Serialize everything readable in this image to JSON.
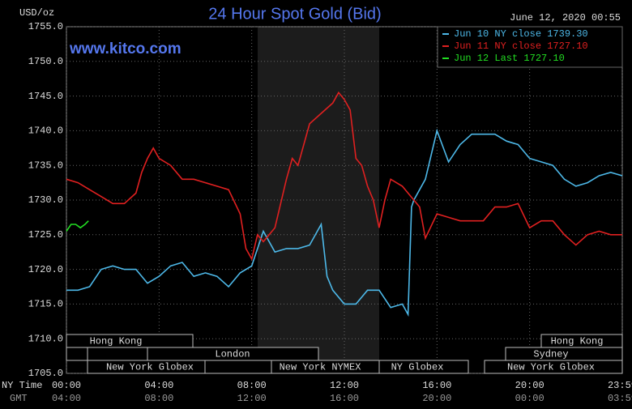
{
  "chart_data": {
    "type": "line",
    "title": "24 Hour Spot Gold (Bid)",
    "y_label": "USD/oz",
    "timestamp": "June 12, 2020 00:55",
    "watermark": "www.kitco.com",
    "x_label": "NY Time",
    "x2_label": "GMT",
    "xlim": [
      0,
      24
    ],
    "xticks": [
      {
        "value": 0,
        "label": "00:00"
      },
      {
        "value": 4,
        "label": "04:00"
      },
      {
        "value": 8,
        "label": "08:00"
      },
      {
        "value": 12,
        "label": "12:00"
      },
      {
        "value": 16,
        "label": "16:00"
      },
      {
        "value": 20,
        "label": "20:00"
      },
      {
        "value": 24,
        "label": "23:59"
      }
    ],
    "x2ticks": [
      "04:00",
      "08:00",
      "12:00",
      "16:00",
      "20:00",
      "00:00",
      "03:59"
    ],
    "ylim": [
      1705,
      1755
    ],
    "yticks": [
      {
        "value": 1705,
        "label": "1705.0"
      },
      {
        "value": 1710,
        "label": "1710.0"
      },
      {
        "value": 1715,
        "label": "1715.0"
      },
      {
        "value": 1720,
        "label": "1720.0"
      },
      {
        "value": 1725,
        "label": "1725.0"
      },
      {
        "value": 1730,
        "label": "1730.0"
      },
      {
        "value": 1735,
        "label": "1735.0"
      },
      {
        "value": 1740,
        "label": "1740.0"
      },
      {
        "value": 1745,
        "label": "1745.0"
      },
      {
        "value": 1750,
        "label": "1750.0"
      },
      {
        "value": 1755,
        "label": "1755.0"
      }
    ],
    "grid": true,
    "legend": "top-right",
    "sessions": [
      "Hong Kong",
      "Hong Kong",
      "London",
      "Sydney",
      "New York Globex",
      "New York NYMEX",
      "NY Globex",
      "New York Globex"
    ],
    "series": [
      {
        "name": "Jun 10 NY close 1739.30",
        "color": "#4db8e8",
        "x": [
          0,
          0.5,
          1,
          1.5,
          2,
          2.5,
          3,
          3.5,
          4,
          4.5,
          5,
          5.5,
          6,
          6.5,
          7,
          7.5,
          8,
          8.5,
          9,
          9.5,
          10,
          10.5,
          11,
          11.25,
          11.5,
          12,
          12.5,
          13,
          13.5,
          14,
          14.5,
          14.75,
          14.9,
          15,
          15.5,
          16,
          16.5,
          17,
          17.5,
          18,
          18.5,
          19,
          19.5,
          20,
          20.5,
          21,
          21.5,
          22,
          22.5,
          23,
          23.5,
          24
        ],
        "values": [
          1717,
          1717,
          1717.5,
          1720,
          1720.5,
          1720,
          1720,
          1718,
          1719,
          1720.5,
          1721,
          1719,
          1719.5,
          1719,
          1717.5,
          1719.5,
          1720.5,
          1725.5,
          1722.5,
          1723,
          1723,
          1723.5,
          1726.5,
          1719,
          1717,
          1715,
          1715,
          1717,
          1717,
          1714.5,
          1715,
          1713.5,
          1729,
          1730,
          1733,
          1740,
          1735.5,
          1738,
          1739.5,
          1739.5,
          1739.5,
          1738.5,
          1738,
          1736,
          1735.5,
          1735,
          1733,
          1732,
          1732.5,
          1733.5,
          1734,
          1733.5
        ]
      },
      {
        "name": "Jun 11 NY close 1727.10",
        "color": "#e02020",
        "x": [
          0,
          0.5,
          1,
          1.5,
          2,
          2.5,
          3,
          3.25,
          3.5,
          3.75,
          4,
          4.5,
          5,
          5.5,
          6,
          6.5,
          7,
          7.5,
          7.75,
          8,
          8.25,
          8.5,
          9,
          9.5,
          9.75,
          10,
          10.5,
          11,
          11.5,
          11.75,
          12,
          12.25,
          12.5,
          12.75,
          13,
          13.25,
          13.5,
          13.75,
          14,
          14.5,
          15,
          15.25,
          15.5,
          16,
          16.5,
          17,
          18,
          18.5,
          19,
          19.5,
          20,
          20.5,
          21,
          21.5,
          22,
          22.5,
          23,
          23.5,
          24
        ],
        "values": [
          1733,
          1732.5,
          1731.5,
          1730.5,
          1729.5,
          1729.5,
          1731,
          1734,
          1736,
          1737.5,
          1736,
          1735,
          1733,
          1733,
          1732.5,
          1732,
          1731.5,
          1728,
          1723,
          1721.5,
          1725,
          1724,
          1726,
          1733,
          1736,
          1735,
          1741,
          1742.5,
          1744,
          1745.5,
          1744.5,
          1743,
          1736,
          1735,
          1732,
          1730,
          1726,
          1730,
          1733,
          1732,
          1730,
          1729,
          1724.5,
          1728,
          1727.5,
          1727,
          1727,
          1729,
          1729,
          1729.5,
          1726,
          1727,
          1727,
          1725,
          1723.5,
          1725,
          1725.5,
          1725,
          1725
        ]
      },
      {
        "name": "Jun 12 Last 1727.10",
        "color": "#22dd22",
        "x": [
          0,
          0.2,
          0.4,
          0.6,
          0.8,
          0.95
        ],
        "values": [
          1725.5,
          1726.5,
          1726.5,
          1726,
          1726.5,
          1727
        ]
      }
    ]
  }
}
